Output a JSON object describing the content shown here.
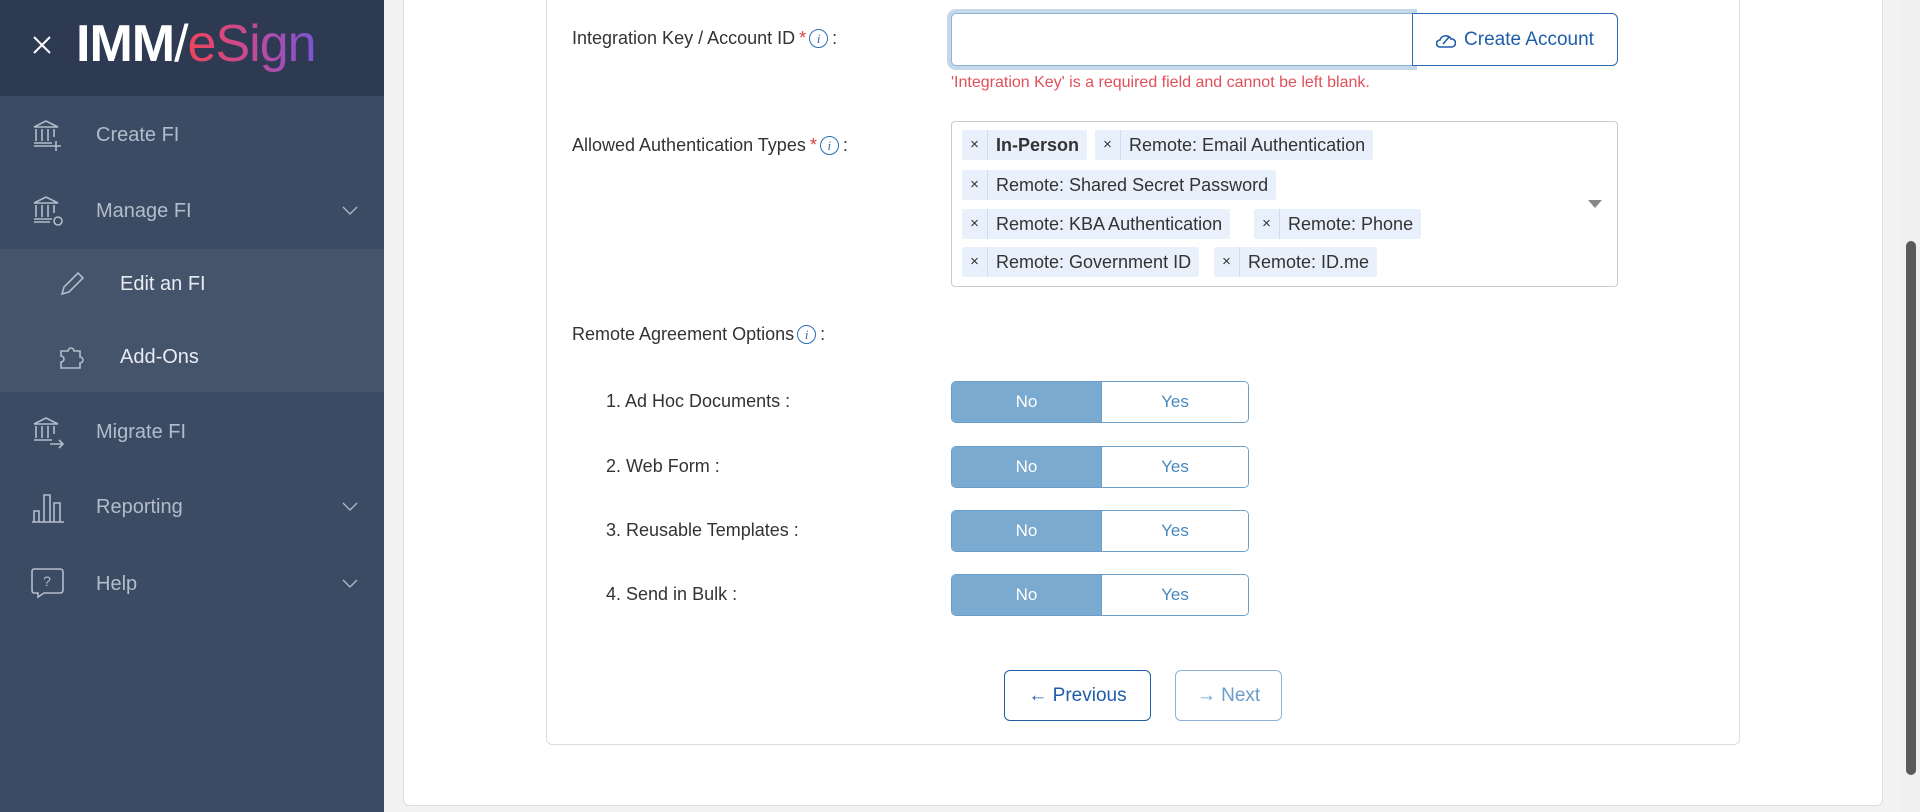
{
  "brand": {
    "logo_text": "IMM/eSign",
    "part1": "IMM",
    "part2": "eSign"
  },
  "sidebar": {
    "items": [
      {
        "label": "Create FI",
        "icon": "bank-plus-icon"
      },
      {
        "label": "Manage FI",
        "icon": "bank-gear-icon",
        "expanded": true,
        "children": [
          {
            "label": "Edit an FI",
            "icon": "pencil-icon"
          },
          {
            "label": "Add-Ons",
            "icon": "puzzle-icon"
          }
        ]
      },
      {
        "label": "Migrate FI",
        "icon": "bank-arrow-icon"
      },
      {
        "label": "Reporting",
        "icon": "bar-chart-icon"
      },
      {
        "label": "Help",
        "icon": "help-bubble-icon"
      }
    ]
  },
  "form": {
    "integration": {
      "label": "Integration Key / Account ID",
      "required": "*",
      "colon": ":",
      "value": "",
      "create_label": "Create Account",
      "error": "'Integration Key' is a required field and cannot be left blank."
    },
    "auth": {
      "label": "Allowed Authentication Types",
      "required": "*",
      "colon": ":",
      "tags": [
        "In-Person",
        "Remote: Email Authentication",
        "Remote: Shared Secret Password",
        "Remote: KBA Authentication",
        "Remote: Phone",
        "Remote: Government ID",
        "Remote: ID.me"
      ],
      "remove": "×"
    },
    "remote": {
      "label": "Remote Agreement Options",
      "colon": ":",
      "options": [
        {
          "label": "1. Ad Hoc Documents :",
          "selected": "No"
        },
        {
          "label": "2. Web Form :",
          "selected": "No"
        },
        {
          "label": "3. Reusable Templates :",
          "selected": "No"
        },
        {
          "label": "4. Send in Bulk :",
          "selected": "No"
        }
      ],
      "no": "No",
      "yes": "Yes"
    },
    "info": "i",
    "previous": "← Previous",
    "next": "→ Next"
  },
  "colors": {
    "sidebar": "#3b4b63",
    "header": "#2e3a52",
    "accent": "#1e5ea8",
    "toggle_on": "#7aaad0",
    "error": "#e0505a"
  }
}
